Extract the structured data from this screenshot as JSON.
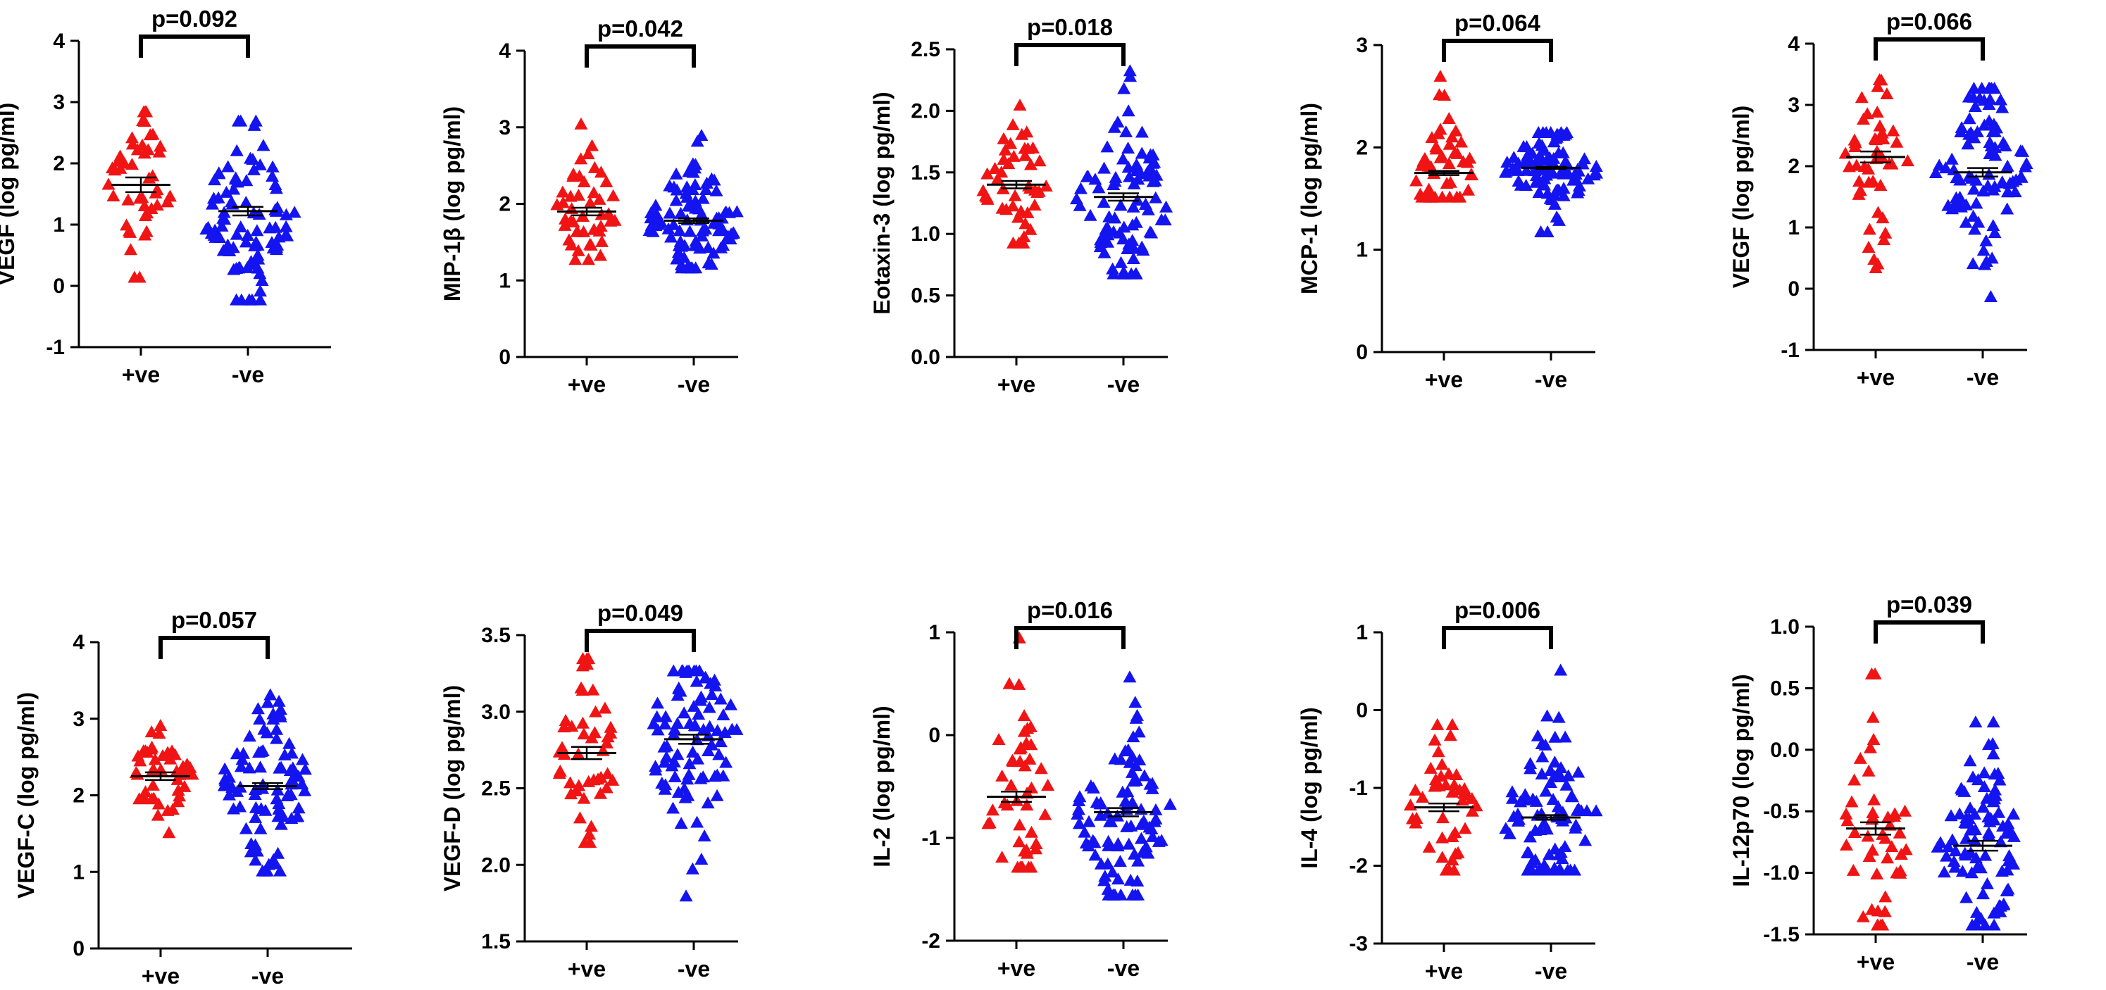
{
  "colors": {
    "positive": "#f01414",
    "negative": "#1414f0",
    "axis": "#000000"
  },
  "chart_data": [
    {
      "type": "scatter",
      "ylabel": "VEGF (log pg/ml)",
      "pvalue": "p=0.092",
      "ylim": [
        -1,
        4
      ],
      "yticks": [
        -1,
        0,
        1,
        2,
        3,
        4
      ],
      "categories": [
        "+ve",
        "-ve"
      ],
      "series": [
        {
          "name": "+ve",
          "n": 46,
          "mean": 1.65,
          "sem": 0.12,
          "min": 0.15,
          "max": 2.85
        },
        {
          "name": "-ve",
          "n": 92,
          "mean": 1.22,
          "sem": 0.07,
          "min": -0.22,
          "max": 2.7
        }
      ]
    },
    {
      "type": "scatter",
      "ylabel": "MIP-1β (log pg/ml)",
      "pvalue": "p=0.042",
      "ylim": [
        0,
        4
      ],
      "yticks": [
        0,
        1,
        2,
        3,
        4
      ],
      "categories": [
        "+ve",
        "-ve"
      ],
      "series": [
        {
          "name": "+ve",
          "n": 46,
          "mean": 1.9,
          "sem": 0.05,
          "min": 1.28,
          "max": 3.05
        },
        {
          "name": "-ve",
          "n": 92,
          "mean": 1.78,
          "sem": 0.03,
          "min": 1.17,
          "max": 2.9
        }
      ]
    },
    {
      "type": "scatter",
      "ylabel": "Eotaxin-3 (log pg/ml)",
      "pvalue": "p=0.018",
      "ylim": [
        0,
        2.5
      ],
      "yticks": [
        0.0,
        0.5,
        1.0,
        1.5,
        2.0,
        2.5
      ],
      "categories": [
        "+ve",
        "-ve"
      ],
      "series": [
        {
          "name": "+ve",
          "n": 46,
          "mean": 1.4,
          "sem": 0.03,
          "min": 0.93,
          "max": 2.05
        },
        {
          "name": "-ve",
          "n": 92,
          "mean": 1.3,
          "sem": 0.03,
          "min": 0.68,
          "max": 2.33
        }
      ]
    },
    {
      "type": "scatter",
      "ylabel": "MCP-1 (log pg/ml)",
      "pvalue": "p=0.064",
      "ylim": [
        0,
        3
      ],
      "yticks": [
        0,
        1,
        2,
        3
      ],
      "categories": [
        "+ve",
        "-ve"
      ],
      "series": [
        {
          "name": "+ve",
          "n": 46,
          "mean": 1.75,
          "sem": 0.02,
          "min": 1.52,
          "max": 2.7
        },
        {
          "name": "-ve",
          "n": 92,
          "mean": 1.8,
          "sem": 0.01,
          "min": 1.18,
          "max": 2.15
        }
      ]
    },
    {
      "type": "scatter",
      "ylabel": "VEGF (log pg/ml)",
      "pvalue": "p=0.066",
      "ylim": [
        -1,
        4
      ],
      "yticks": [
        -1,
        0,
        1,
        2,
        3,
        4
      ],
      "categories": [
        "+ve",
        "-ve"
      ],
      "series": [
        {
          "name": "+ve",
          "n": 46,
          "mean": 2.15,
          "sem": 0.09,
          "min": 0.35,
          "max": 3.42
        },
        {
          "name": "-ve",
          "n": 92,
          "mean": 1.9,
          "sem": 0.07,
          "min": -0.12,
          "max": 3.28
        }
      ]
    },
    {
      "type": "scatter",
      "ylabel": "VEGF-C (log pg/ml)",
      "pvalue": "p=0.057",
      "ylim": [
        0,
        4
      ],
      "yticks": [
        0,
        1,
        2,
        3,
        4
      ],
      "categories": [
        "+ve",
        "-ve"
      ],
      "series": [
        {
          "name": "+ve",
          "n": 46,
          "mean": 2.25,
          "sem": 0.05,
          "min": 1.52,
          "max": 2.92
        },
        {
          "name": "-ve",
          "n": 92,
          "mean": 2.12,
          "sem": 0.04,
          "min": 1.02,
          "max": 3.32
        }
      ]
    },
    {
      "type": "scatter",
      "ylabel": "VEGF-D (log pg/ml)",
      "pvalue": "p=0.049",
      "ylim": [
        1.5,
        3.5
      ],
      "yticks": [
        1.5,
        2.0,
        2.5,
        3.0,
        3.5
      ],
      "categories": [
        "+ve",
        "-ve"
      ],
      "series": [
        {
          "name": "+ve",
          "n": 46,
          "mean": 2.73,
          "sem": 0.04,
          "min": 2.15,
          "max": 3.35
        },
        {
          "name": "-ve",
          "n": 92,
          "mean": 2.82,
          "sem": 0.03,
          "min": 1.8,
          "max": 3.27
        }
      ]
    },
    {
      "type": "scatter",
      "ylabel": "IL-2 (log pg/ml)",
      "pvalue": "p=0.016",
      "ylim": [
        -2,
        1
      ],
      "yticks": [
        -2,
        -1,
        0,
        1
      ],
      "categories": [
        "+ve",
        "-ve"
      ],
      "series": [
        {
          "name": "+ve",
          "n": 46,
          "mean": -0.6,
          "sem": 0.05,
          "min": -1.28,
          "max": 0.95
        },
        {
          "name": "-ve",
          "n": 92,
          "mean": -0.75,
          "sem": 0.04,
          "min": -1.55,
          "max": 0.57
        }
      ]
    },
    {
      "type": "scatter",
      "ylabel": "IL-4 (log pg/ml)",
      "pvalue": "p=0.006",
      "ylim": [
        -3,
        1
      ],
      "yticks": [
        -3,
        -2,
        -1,
        0,
        1
      ],
      "categories": [
        "+ve",
        "-ve"
      ],
      "series": [
        {
          "name": "+ve",
          "n": 46,
          "mean": -1.25,
          "sem": 0.05,
          "min": -2.05,
          "max": -0.18
        },
        {
          "name": "-ve",
          "n": 92,
          "mean": -1.38,
          "sem": 0.03,
          "min": -2.05,
          "max": 0.52
        }
      ]
    },
    {
      "type": "scatter",
      "ylabel": "IL-12p70 (log pg/ml)",
      "pvalue": "p=0.039",
      "ylim": [
        -1.5,
        1.0
      ],
      "yticks": [
        -1.5,
        -1.0,
        -0.5,
        0.0,
        0.5,
        1.0
      ],
      "categories": [
        "+ve",
        "-ve"
      ],
      "series": [
        {
          "name": "+ve",
          "n": 46,
          "mean": -0.64,
          "sem": 0.05,
          "min": -1.42,
          "max": 0.62
        },
        {
          "name": "-ve",
          "n": 92,
          "mean": -0.78,
          "sem": 0.04,
          "min": -1.42,
          "max": 0.23
        }
      ]
    }
  ]
}
